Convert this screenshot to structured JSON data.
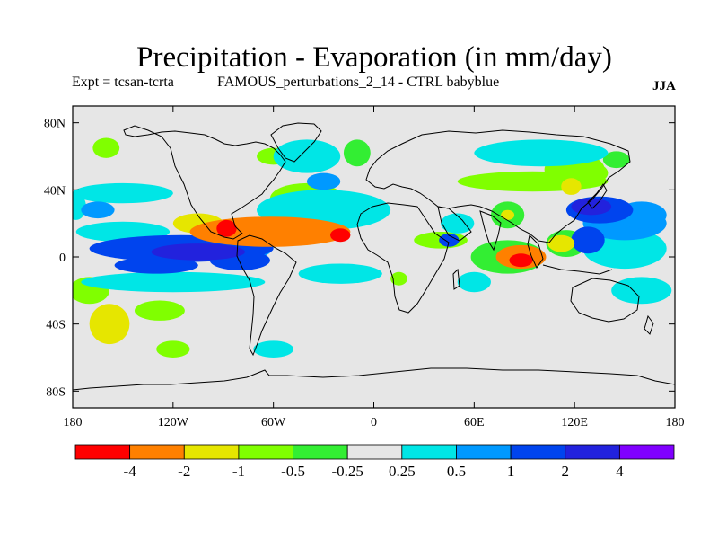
{
  "chart_data": {
    "type": "heatmap",
    "title": "Precipitation - Evaporation (in mm/day)",
    "subtitle_left": "Expt = tcsan-tcrta",
    "subtitle_center": "FAMOUS_perturbations_2_14 - CTRL babyblue",
    "subtitle_right": "JJA",
    "x_ticks": [
      {
        "value": -180,
        "label": "180"
      },
      {
        "value": -120,
        "label": "120W"
      },
      {
        "value": -60,
        "label": "60W"
      },
      {
        "value": 0,
        "label": "0"
      },
      {
        "value": 60,
        "label": "60E"
      },
      {
        "value": 120,
        "label": "120E"
      },
      {
        "value": 180,
        "label": "180"
      }
    ],
    "y_ticks": [
      {
        "value": 80,
        "label": "80N"
      },
      {
        "value": 40,
        "label": "40N"
      },
      {
        "value": 0,
        "label": "0"
      },
      {
        "value": -40,
        "label": "40S"
      },
      {
        "value": -80,
        "label": "80S"
      }
    ],
    "xlim": [
      -180,
      180
    ],
    "ylim": [
      -90,
      90
    ],
    "colorbar": {
      "colors": [
        "#ff0000",
        "#ff8000",
        "#e6e600",
        "#80ff00",
        "#33ee33",
        "#e6e6e6",
        "#00e6e6",
        "#0099ff",
        "#0044ee",
        "#2222dd",
        "#8000ff"
      ],
      "levels": [
        "-4",
        "-2",
        "-1",
        "-0.5",
        "-0.25",
        "0.25",
        "0.5",
        "1",
        "2",
        "4"
      ]
    },
    "background_color": "#e6e6e6",
    "regions": [
      {
        "level": 3,
        "lon": -170,
        "lat": -20,
        "rlon": 12,
        "rlat": 8
      },
      {
        "level": 2,
        "lon": -158,
        "lat": -40,
        "rlon": 12,
        "rlat": 12
      },
      {
        "level": 3,
        "lon": -128,
        "lat": -32,
        "rlon": 15,
        "rlat": 6
      },
      {
        "level": 3,
        "lon": -125,
        "lat": 5,
        "rlon": 30,
        "rlat": 5
      },
      {
        "level": 3,
        "lon": -60,
        "lat": 60,
        "rlon": 10,
        "rlat": 5
      },
      {
        "level": 3,
        "lon": -40,
        "lat": 35,
        "rlon": 22,
        "rlat": 9
      },
      {
        "level": 3,
        "lon": 95,
        "lat": 45,
        "rlon": 45,
        "rlat": 6
      },
      {
        "level": 3,
        "lon": 120,
        "lat": 52,
        "rlon": 18,
        "rlat": 10
      },
      {
        "level": 4,
        "lon": 145,
        "lat": 58,
        "rlon": 8,
        "rlat": 5
      },
      {
        "level": 4,
        "lon": -10,
        "lat": 62,
        "rlon": 8,
        "rlat": 8
      },
      {
        "level": 3,
        "lon": 40,
        "lat": 10,
        "rlon": 16,
        "rlat": 5
      },
      {
        "level": 4,
        "lon": 80,
        "lat": 0,
        "rlon": 22,
        "rlat": 10
      },
      {
        "level": 4,
        "lon": 115,
        "lat": 8,
        "rlon": 12,
        "rlat": 8
      },
      {
        "level": 4,
        "lon": 80,
        "lat": 25,
        "rlon": 10,
        "rlat": 8
      },
      {
        "level": 3,
        "lon": 130,
        "lat": 50,
        "rlon": 10,
        "rlat": 6
      },
      {
        "level": 3,
        "lon": -120,
        "lat": -55,
        "rlon": 10,
        "rlat": 5
      },
      {
        "level": 3,
        "lon": -160,
        "lat": 65,
        "rlon": 8,
        "rlat": 6
      },
      {
        "level": 3,
        "lon": 15,
        "lat": -13,
        "rlon": 5,
        "rlat": 4
      },
      {
        "level": 6,
        "lon": -178,
        "lat": 30,
        "rlon": 6,
        "rlat": 8
      },
      {
        "level": 6,
        "lon": -150,
        "lat": 38,
        "rlon": 30,
        "rlat": 6
      },
      {
        "level": 6,
        "lon": -150,
        "lat": 15,
        "rlon": 28,
        "rlat": 6
      },
      {
        "level": 6,
        "lon": -120,
        "lat": -15,
        "rlon": 55,
        "rlat": 6
      },
      {
        "level": 6,
        "lon": -30,
        "lat": 28,
        "rlon": 40,
        "rlat": 12
      },
      {
        "level": 6,
        "lon": -20,
        "lat": -10,
        "rlon": 25,
        "rlat": 6
      },
      {
        "level": 6,
        "lon": -40,
        "lat": 60,
        "rlon": 20,
        "rlat": 10
      },
      {
        "level": 6,
        "lon": 100,
        "lat": 62,
        "rlon": 40,
        "rlat": 8
      },
      {
        "level": 6,
        "lon": 150,
        "lat": 5,
        "rlon": 25,
        "rlat": 12
      },
      {
        "level": 6,
        "lon": 160,
        "lat": -20,
        "rlon": 18,
        "rlat": 8
      },
      {
        "level": 6,
        "lon": 50,
        "lat": 20,
        "rlon": 10,
        "rlat": 6
      },
      {
        "level": 6,
        "lon": -60,
        "lat": -55,
        "rlon": 12,
        "rlat": 5
      },
      {
        "level": 6,
        "lon": 60,
        "lat": -15,
        "rlon": 10,
        "rlat": 6
      },
      {
        "level": 7,
        "lon": -165,
        "lat": 28,
        "rlon": 10,
        "rlat": 5
      },
      {
        "level": 7,
        "lon": -80,
        "lat": 6,
        "rlon": 20,
        "rlat": 8
      },
      {
        "level": 7,
        "lon": 150,
        "lat": 20,
        "rlon": 25,
        "rlat": 10
      },
      {
        "level": 7,
        "lon": 160,
        "lat": 25,
        "rlon": 15,
        "rlat": 8
      },
      {
        "level": 7,
        "lon": -30,
        "lat": 45,
        "rlon": 10,
        "rlat": 5
      },
      {
        "level": 8,
        "lon": -115,
        "lat": 5,
        "rlon": 55,
        "rlat": 8
      },
      {
        "level": 8,
        "lon": -130,
        "lat": -5,
        "rlon": 25,
        "rlat": 5
      },
      {
        "level": 8,
        "lon": -80,
        "lat": -2,
        "rlon": 18,
        "rlat": 6
      },
      {
        "level": 8,
        "lon": 45,
        "lat": 10,
        "rlon": 6,
        "rlat": 4
      },
      {
        "level": 8,
        "lon": 135,
        "lat": 28,
        "rlon": 20,
        "rlat": 8
      },
      {
        "level": 8,
        "lon": 128,
        "lat": 10,
        "rlon": 10,
        "rlat": 8
      },
      {
        "level": 9,
        "lon": -105,
        "lat": 3,
        "rlon": 28,
        "rlat": 5
      },
      {
        "level": 9,
        "lon": 130,
        "lat": 30,
        "rlon": 12,
        "rlat": 5
      },
      {
        "level": 2,
        "lon": -105,
        "lat": 20,
        "rlon": 15,
        "rlat": 6
      },
      {
        "level": 1,
        "lon": -62,
        "lat": 15,
        "rlon": 48,
        "rlat": 9
      },
      {
        "level": 0,
        "lon": -88,
        "lat": 17,
        "rlon": 6,
        "rlat": 5
      },
      {
        "level": 0,
        "lon": -20,
        "lat": 13,
        "rlon": 6,
        "rlat": 4
      },
      {
        "level": 1,
        "lon": 88,
        "lat": 0,
        "rlon": 15,
        "rlat": 7
      },
      {
        "level": 0,
        "lon": 88,
        "lat": -2,
        "rlon": 7,
        "rlat": 4
      },
      {
        "level": 2,
        "lon": 112,
        "lat": 8,
        "rlon": 8,
        "rlat": 5
      },
      {
        "level": 2,
        "lon": 118,
        "lat": 42,
        "rlon": 6,
        "rlat": 5
      },
      {
        "level": 2,
        "lon": 80,
        "lat": 25,
        "rlon": 4,
        "rlat": 3
      }
    ]
  }
}
